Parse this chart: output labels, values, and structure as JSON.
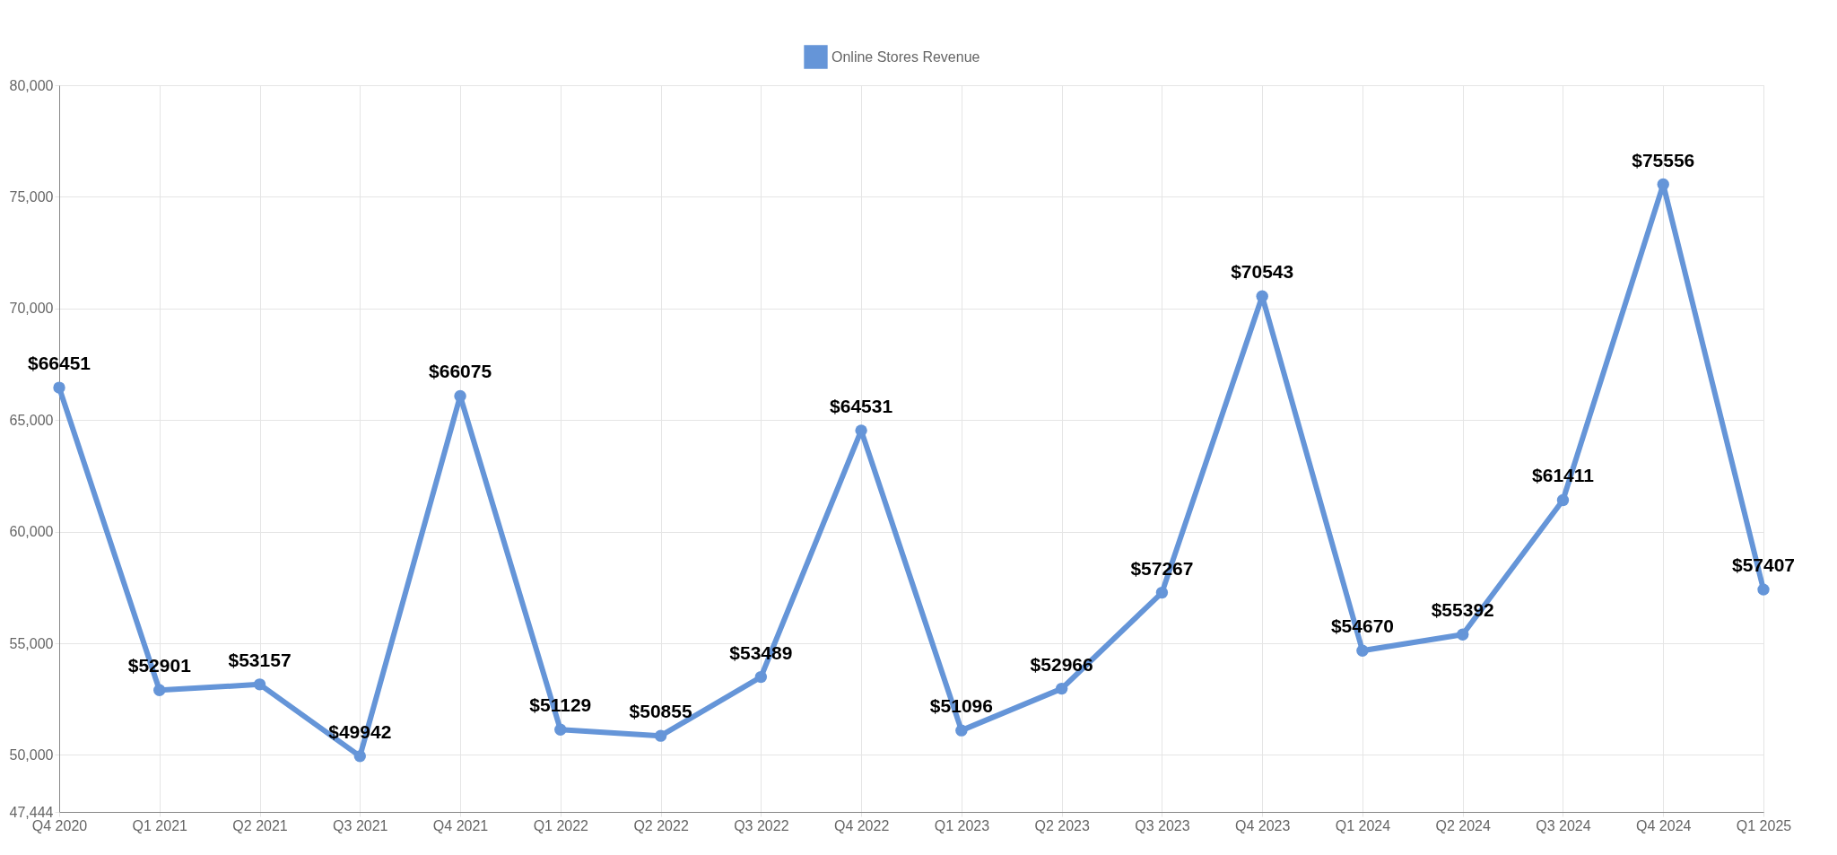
{
  "chart_data": {
    "type": "line",
    "categories": [
      "Q4 2020",
      "Q1 2021",
      "Q2 2021",
      "Q3 2021",
      "Q4 2021",
      "Q1 2022",
      "Q2 2022",
      "Q3 2022",
      "Q4 2022",
      "Q1 2023",
      "Q2 2023",
      "Q3 2023",
      "Q4 2023",
      "Q1 2024",
      "Q2 2024",
      "Q3 2024",
      "Q4 2024",
      "Q1 2025"
    ],
    "series": [
      {
        "name": "Online Stores Revenue",
        "color": "#6595d8",
        "values": [
          66451,
          52901,
          53157,
          49942,
          66075,
          51129,
          50855,
          53489,
          64531,
          51096,
          52966,
          57267,
          70543,
          54670,
          55392,
          61411,
          75556,
          57407
        ],
        "value_labels": [
          "$66451",
          "$52901",
          "$53157",
          "$49942",
          "$66075",
          "$51129",
          "$50855",
          "$53489",
          "$64531",
          "$51096",
          "$52966",
          "$57267",
          "$70543",
          "$54670",
          "$55392",
          "$61411",
          "$75556",
          "$57407"
        ]
      }
    ],
    "ylim": [
      47444,
      80000
    ],
    "yticks": [
      {
        "value": 47444,
        "label": "47,444"
      },
      {
        "value": 50000,
        "label": "50,000"
      },
      {
        "value": 55000,
        "label": "55,000"
      },
      {
        "value": 60000,
        "label": "60,000"
      },
      {
        "value": 65000,
        "label": "65,000"
      },
      {
        "value": 70000,
        "label": "70,000"
      },
      {
        "value": 75000,
        "label": "75,000"
      },
      {
        "value": 80000,
        "label": "80,000"
      }
    ],
    "grid": true,
    "legend": "top",
    "marker": "circle",
    "line_style": "solid"
  }
}
